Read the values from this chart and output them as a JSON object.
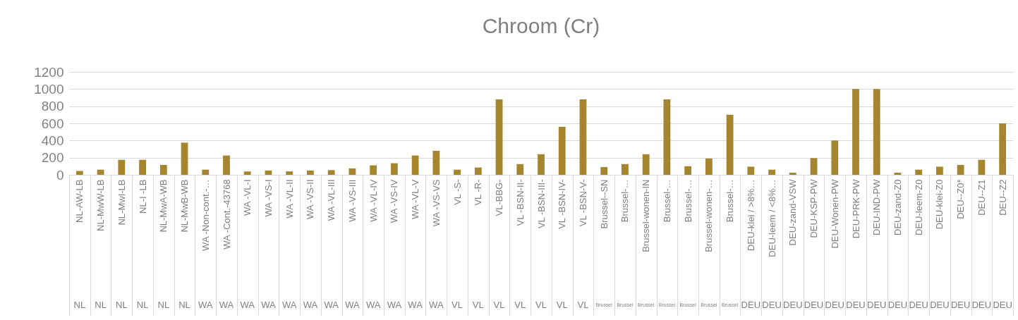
{
  "chart_data": {
    "type": "bar",
    "title": "Chroom (Cr)",
    "categories": [
      "NL-AW-LB",
      "NL-MwW-LB",
      "NL-MwI-LB",
      "NL-I -LB",
      "NL-MwA-WB",
      "NL-MwB-WB",
      "WA -Non-cont.-…",
      "WA -Cont.-43768",
      "WA -VL-I",
      "WA -VS-I",
      "WA -VL-II",
      "WA -VS-II",
      "WA -VL-III",
      "WA -VS-III",
      "WA -VL-IV",
      "WA -VS-IV",
      "WA -VL-V",
      "WA -VS-VS",
      "VL -S-",
      "VL -R-",
      "VL-BBG-",
      "VL -BSN-II-",
      "VL -BSN-III-",
      "VL -BSN-IV-",
      "VL -BSN-V-",
      "Brussel--SN",
      "Brussel-…",
      "Brussel-wonen-IN",
      "Brussel-…",
      "Brussel-…",
      "Brussel-wonen-…",
      "Brussel-…",
      "DEU-klei / >8%…",
      "DEU-leem / <8%…",
      "DEU-zand-VSW",
      "DEU-KSP-PW",
      "DEU-Wonen-PW",
      "DEU-PRK-PW",
      "DEU-IND-PW",
      "DEU-zand-Z0",
      "DEU-leem-Z0",
      "DEU-klei-Z0",
      "DEU--Z0*",
      "DEU--Z1",
      "DEU--Z2"
    ],
    "values": [
      45,
      60,
      175,
      175,
      115,
      375,
      60,
      225,
      40,
      50,
      40,
      50,
      55,
      75,
      110,
      135,
      225,
      280,
      60,
      85,
      880,
      125,
      240,
      560,
      880,
      90,
      125,
      240,
      880,
      100,
      190,
      700,
      95,
      60,
      25,
      195,
      400,
      1000,
      1000,
      25,
      60,
      95,
      115,
      175,
      600
    ],
    "color": "#a5862f",
    "ylim": [
      0,
      1200
    ],
    "yticks": [
      0,
      200,
      400,
      600,
      800,
      1000,
      1200
    ],
    "grid": "y",
    "annotations": [
      "NL",
      "NL",
      "NL",
      "NL",
      "NL",
      "NL",
      "WA",
      "WA",
      "WA",
      "WA",
      "WA",
      "WA",
      "WA",
      "WA",
      "WA",
      "WA",
      "WA",
      "WA",
      "VL",
      "VL",
      "VL",
      "VL",
      "VL",
      "VL",
      "VL",
      "Brussel",
      "Brussel",
      "Brussel",
      "Brussel",
      "Brussel",
      "Brussel",
      "Brussel",
      "DEU",
      "DEU",
      "DEU",
      "DEU",
      "DEU",
      "DEU",
      "DEU",
      "DEU",
      "DEU",
      "DEU",
      "DEU",
      "DEU",
      "DEU"
    ]
  }
}
